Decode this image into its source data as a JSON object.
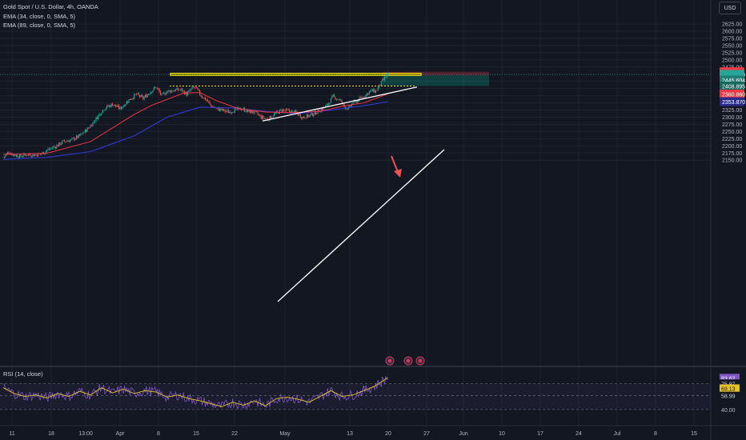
{
  "header": {
    "symbol_title": "Gold Spot / U.S. Dollar, 4h, OANDA",
    "ema_fast": "EMA (34, close, 0, SMA, 5)",
    "ema_slow": "EMA (89, close, 0, SMA, 5)",
    "currency": "USD"
  },
  "rsi_panel": {
    "title": "RSI (14, close)",
    "levels": {
      "value": "83.62",
      "upper": "75.97",
      "mid": "69.13",
      "lower": "58.99",
      "floor": "40.00"
    }
  },
  "price_labels": {
    "stop_loss": "2458.521",
    "current": "2449.155",
    "countdown": "03:13:16",
    "entry": "2445.604",
    "take_profit": "2408.895",
    "ema34": "2380.860",
    "ema89": "2353.870"
  },
  "colors": {
    "background": "#131722",
    "up_candle": "#26a69a",
    "down_candle": "#ef5350",
    "ema34": "#f23645",
    "ema89": "#2f3ad6",
    "rsi": "#7e57c2",
    "zone": "#f7e600",
    "stop_label": "#f23645",
    "entry_label": "#26a69a",
    "ema89_label": "#2a2b8f"
  },
  "chart_data": {
    "type": "candlestick",
    "title": "Gold Spot / U.S. Dollar, 4h, OANDA",
    "xlabel": "",
    "ylabel": "",
    "x_ticks": [
      "11",
      "18",
      "13:00",
      "Apr",
      "8",
      "15",
      "22",
      "May",
      "13",
      "20",
      "27",
      "Jun",
      "10",
      "17",
      "24",
      "Jul",
      "8",
      "15"
    ],
    "y_ticks": [
      2150,
      2175,
      2200,
      2225,
      2250,
      2275,
      2300,
      2325,
      2350,
      2375,
      2400,
      2425,
      2450,
      2475,
      2500,
      2525,
      2550,
      2575,
      2600,
      2625
    ],
    "ylim": [
      2140,
      2650
    ],
    "close_path": [
      [
        0,
        2160
      ],
      [
        5,
        2178
      ],
      [
        9,
        2170
      ],
      [
        15,
        2163
      ],
      [
        22,
        2170
      ],
      [
        28,
        2168
      ],
      [
        35,
        2172
      ],
      [
        40,
        2185
      ],
      [
        48,
        2198
      ],
      [
        55,
        2215
      ],
      [
        62,
        2220
      ],
      [
        70,
        2235
      ],
      [
        78,
        2262
      ],
      [
        86,
        2300
      ],
      [
        92,
        2330
      ],
      [
        100,
        2345
      ],
      [
        107,
        2330
      ],
      [
        115,
        2360
      ],
      [
        122,
        2380
      ],
      [
        128,
        2365
      ],
      [
        135,
        2390
      ],
      [
        140,
        2405
      ],
      [
        145,
        2375
      ],
      [
        150,
        2390
      ],
      [
        158,
        2395
      ],
      [
        163,
        2395
      ],
      [
        168,
        2380
      ],
      [
        174,
        2405
      ],
      [
        177,
        2398
      ],
      [
        181,
        2375
      ],
      [
        186,
        2360
      ],
      [
        190,
        2340
      ],
      [
        195,
        2330
      ],
      [
        200,
        2325
      ],
      [
        206,
        2318
      ],
      [
        212,
        2325
      ],
      [
        218,
        2330
      ],
      [
        224,
        2320
      ],
      [
        230,
        2318
      ],
      [
        236,
        2300
      ],
      [
        242,
        2292
      ],
      [
        248,
        2310
      ],
      [
        255,
        2325
      ],
      [
        262,
        2320
      ],
      [
        268,
        2315
      ],
      [
        274,
        2300
      ],
      [
        280,
        2305
      ],
      [
        288,
        2320
      ],
      [
        296,
        2340
      ],
      [
        302,
        2372
      ],
      [
        308,
        2360
      ],
      [
        312,
        2338
      ],
      [
        316,
        2330
      ],
      [
        320,
        2350
      ],
      [
        325,
        2360
      ],
      [
        332,
        2378
      ],
      [
        336,
        2392
      ],
      [
        341,
        2390
      ],
      [
        346,
        2420
      ],
      [
        350,
        2440
      ],
      [
        352,
        2449
      ]
    ],
    "ema34": [
      [
        0,
        2170
      ],
      [
        40,
        2174
      ],
      [
        80,
        2215
      ],
      [
        120,
        2310
      ],
      [
        135,
        2340
      ],
      [
        165,
        2384
      ],
      [
        180,
        2386
      ],
      [
        195,
        2358
      ],
      [
        215,
        2330
      ],
      [
        240,
        2318
      ],
      [
        262,
        2316
      ],
      [
        290,
        2320
      ],
      [
        310,
        2338
      ],
      [
        330,
        2350
      ],
      [
        352,
        2381
      ]
    ],
    "ema89": [
      [
        0,
        2153
      ],
      [
        40,
        2160
      ],
      [
        80,
        2180
      ],
      [
        120,
        2235
      ],
      [
        150,
        2300
      ],
      [
        180,
        2335
      ],
      [
        210,
        2332
      ],
      [
        240,
        2320
      ],
      [
        270,
        2313
      ],
      [
        300,
        2325
      ],
      [
        330,
        2340
      ],
      [
        352,
        2354
      ]
    ],
    "rsi": {
      "ylim": [
        20,
        95
      ],
      "levels": [
        83.62,
        75.97,
        69.13,
        58.99,
        40
      ],
      "points": [
        [
          0,
          70
        ],
        [
          10,
          62
        ],
        [
          20,
          58
        ],
        [
          30,
          60
        ],
        [
          40,
          56
        ],
        [
          50,
          62
        ],
        [
          60,
          58
        ],
        [
          70,
          65
        ],
        [
          80,
          60
        ],
        [
          90,
          70
        ],
        [
          100,
          63
        ],
        [
          110,
          68
        ],
        [
          120,
          62
        ],
        [
          130,
          66
        ],
        [
          140,
          64
        ],
        [
          150,
          57
        ],
        [
          160,
          60
        ],
        [
          170,
          55
        ],
        [
          180,
          52
        ],
        [
          190,
          48
        ],
        [
          200,
          44
        ],
        [
          210,
          50
        ],
        [
          220,
          46
        ],
        [
          230,
          52
        ],
        [
          240,
          45
        ],
        [
          250,
          55
        ],
        [
          260,
          57
        ],
        [
          270,
          54
        ],
        [
          280,
          50
        ],
        [
          290,
          58
        ],
        [
          300,
          66
        ],
        [
          310,
          58
        ],
        [
          320,
          60
        ],
        [
          330,
          66
        ],
        [
          340,
          72
        ],
        [
          348,
          80
        ],
        [
          352,
          84
        ]
      ]
    },
    "annotations": {
      "resistance_zone": [
        2446,
        2453
      ],
      "dotted_level": 2408.9,
      "channel_upper_line": [
        [
          274,
          2295
        ],
        [
          355,
          2475
        ]
      ],
      "channel_lower_line": [
        [
          293,
          2255
        ],
        [
          373,
          2452
        ]
      ],
      "short_position": {
        "entry": 2445.6,
        "stop": 2458.5,
        "target": 2408.9
      }
    }
  }
}
